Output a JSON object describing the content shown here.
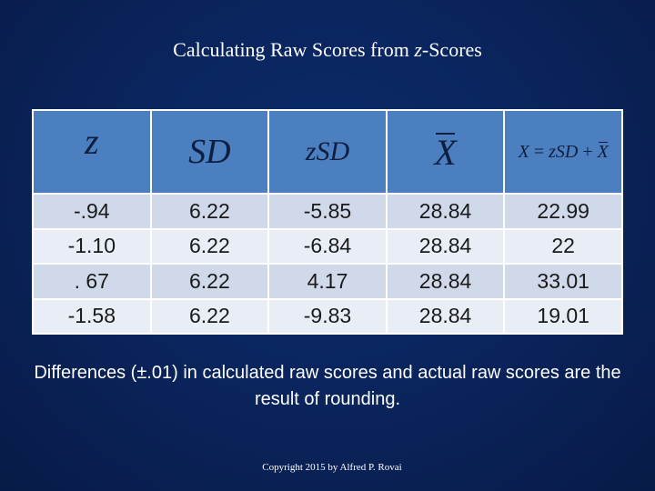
{
  "title": {
    "prefix": "Calculating Raw Scores from ",
    "italic": "z",
    "suffix": "-Scores"
  },
  "table": {
    "headers": {
      "z": "z",
      "sd": "SD",
      "zsd": "zSD",
      "xbar": "X",
      "formula": {
        "x": "X",
        "equals": " = ",
        "zsd": "zSD",
        "plus": " + ",
        "xbar": "X"
      }
    },
    "rows": [
      [
        "-.94",
        "6.22",
        "-5.85",
        "28.84",
        "22.99"
      ],
      [
        "-1.10",
        "6.22",
        "-6.84",
        "28.84",
        "22"
      ],
      [
        ". 67",
        "6.22",
        "4.17",
        "28.84",
        "33.01"
      ],
      [
        "-1.58",
        "6.22",
        "-9.83",
        "28.84",
        "19.01"
      ]
    ]
  },
  "footnote": "Differences (±.01) in calculated raw scores and actual raw scores are the result of rounding.",
  "copyright": "Copyright 2015 by Alfred P. Rovai",
  "colors": {
    "background": "#0a235a",
    "header_fill": "#4c7fc0",
    "row_odd": "#d0d9ea",
    "row_even": "#e8edf6"
  }
}
